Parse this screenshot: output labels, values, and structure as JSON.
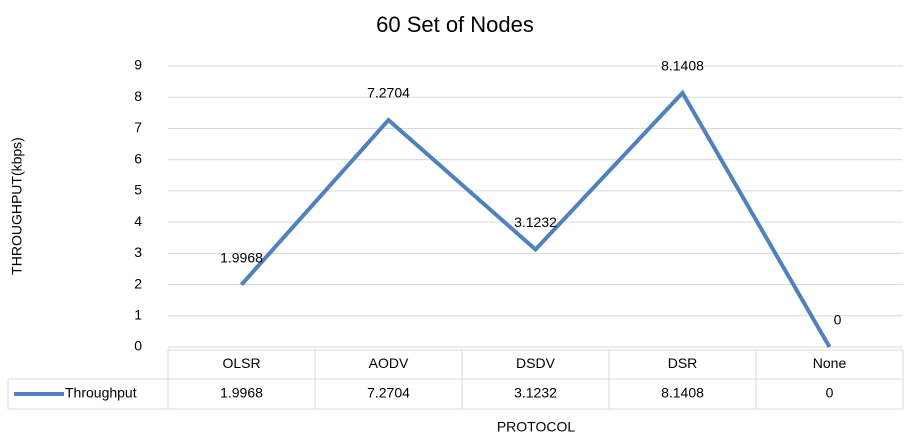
{
  "chart_data": {
    "type": "line",
    "title": "60 Set of Nodes",
    "x_label": "PROTOCOL",
    "y_label": "THROUGHPUT(kbps)",
    "categories": [
      "OLSR",
      "AODV",
      "DSDV",
      "DSR",
      "None"
    ],
    "series": [
      {
        "name": "Throughput",
        "color": "#4f81bd",
        "values": [
          1.9968,
          7.2704,
          3.1232,
          8.1408,
          0
        ]
      }
    ],
    "ylim": [
      0,
      9
    ],
    "yticks": [
      0,
      1,
      2,
      3,
      4,
      5,
      6,
      7,
      8,
      9
    ],
    "grid": true,
    "data_table": true
  }
}
